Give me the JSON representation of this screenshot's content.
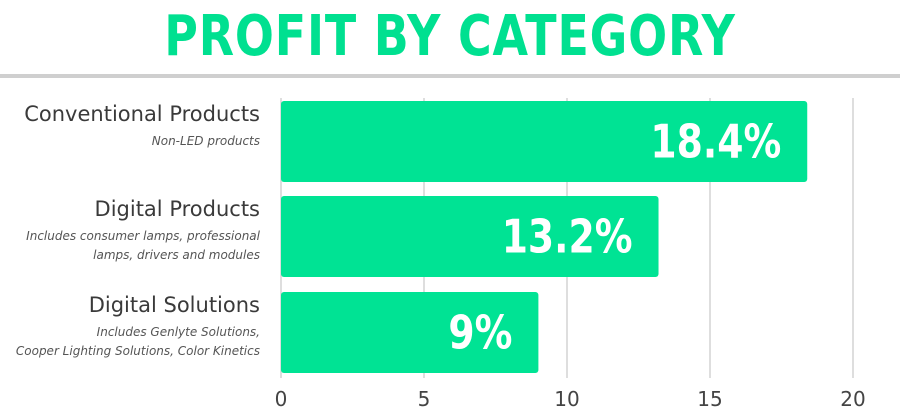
{
  "chart_data": {
    "type": "bar",
    "orientation": "horizontal",
    "title": "PROFIT BY CATEGORY",
    "categories": [
      "Conventional Products",
      "Digital Products",
      "Digital Solutions"
    ],
    "descriptions": [
      [
        "Non-LED products"
      ],
      [
        "Includes consumer lamps, professional",
        "lamps, drivers and modules"
      ],
      [
        "Includes Genlyte Solutions,",
        "Cooper Lighting Solutions, Color Kinetics"
      ]
    ],
    "values": [
      18.4,
      13.2,
      9
    ],
    "data_labels": [
      "18.4%",
      "13.2%",
      "9%"
    ],
    "xlim": [
      0,
      20
    ],
    "xticks": [
      0,
      5,
      10,
      15,
      20
    ],
    "xtick_labels": [
      "0",
      "5",
      "10",
      "15",
      "20"
    ],
    "grid": "vertical",
    "bar_color": "#00e394",
    "title_color": "#00e090"
  }
}
